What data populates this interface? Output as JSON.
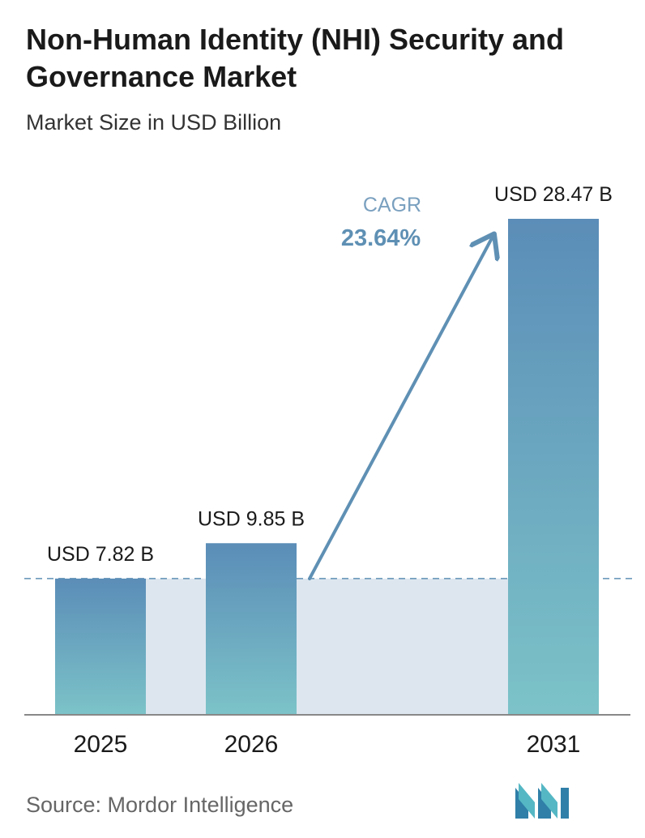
{
  "header": {
    "title": "Non-Human Identity (NHI) Security and Governance Market",
    "subtitle": "Market Size in USD Billion"
  },
  "chart_data": {
    "type": "bar",
    "categories": [
      "2025",
      "2026",
      "2031"
    ],
    "values": [
      7.82,
      9.85,
      28.47
    ],
    "value_labels": [
      "USD 7.82 B",
      "USD 9.85 B",
      "USD 28.47 B"
    ],
    "ylim": [
      0,
      30
    ],
    "grid": false,
    "cagr_label": "CAGR",
    "cagr_value": "23.64%"
  },
  "colors": {
    "bar_top": "#5b8db8",
    "bar_bottom": "#7cc3c8",
    "band": "#dde6ef",
    "arrow": "#5f90b4",
    "cagr_label": "#7aa0bf",
    "cagr_value": "#5f90b4",
    "axis": "#888888"
  },
  "footer": {
    "source": "Source: Mordor Intelligence",
    "logo": "mordor-intelligence-logo"
  }
}
